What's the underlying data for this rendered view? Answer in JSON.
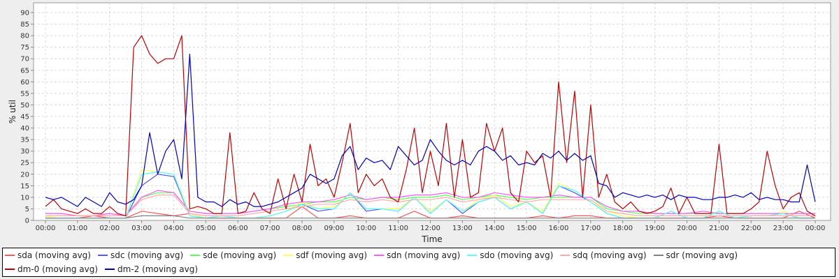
{
  "chart_data": {
    "type": "line",
    "title": "",
    "xlabel": "Time",
    "ylabel": "% util",
    "ylim": [
      0,
      94
    ],
    "xlim_hours": [
      -0.37,
      24.48
    ],
    "yticks": [
      0,
      5,
      10,
      15,
      20,
      25,
      30,
      35,
      40,
      45,
      50,
      55,
      60,
      65,
      70,
      75,
      80,
      85,
      90
    ],
    "xticks": [
      "00:00",
      "01:00",
      "02:00",
      "03:00",
      "04:00",
      "05:00",
      "06:00",
      "07:00",
      "08:00",
      "09:00",
      "10:00",
      "11:00",
      "12:00",
      "13:00",
      "14:00",
      "15:00",
      "16:00",
      "17:00",
      "18:00",
      "19:00",
      "20:00",
      "21:00",
      "22:00",
      "23:00",
      "00:00"
    ],
    "grid": true,
    "legend_position": "bottom",
    "series": [
      {
        "name": "sda (moving avg)",
        "color": "#ff5555",
        "step_hours": 0.5,
        "values": [
          1,
          1,
          1,
          2,
          1,
          1,
          4,
          3,
          2,
          3,
          1,
          1,
          1,
          1,
          1,
          1,
          6,
          1,
          1,
          2,
          1,
          1,
          1,
          4,
          1,
          1,
          2,
          1,
          1,
          1,
          1,
          2,
          1,
          2,
          2,
          1,
          1,
          1,
          1,
          1,
          1,
          1,
          2,
          1,
          1,
          1,
          1,
          4,
          1
        ]
      },
      {
        "name": "sdc (moving avg)",
        "color": "#5555ff",
        "step_hours": 0.5,
        "values": [
          1,
          1,
          1,
          1,
          1,
          1,
          15,
          20,
          19,
          2,
          1,
          2,
          1,
          1,
          2,
          4,
          7,
          4,
          5,
          12,
          4,
          5,
          4,
          10,
          3,
          9,
          3,
          8,
          10,
          5,
          8,
          3,
          15,
          12,
          8,
          3,
          1,
          1,
          1,
          4,
          1,
          1,
          4,
          1,
          2,
          2,
          3,
          1,
          1
        ]
      },
      {
        "name": "sde (moving avg)",
        "color": "#55ff55",
        "step_hours": 0.5,
        "values": [
          3,
          3,
          2,
          2,
          3,
          2,
          10,
          12,
          12,
          4,
          3,
          3,
          3,
          4,
          5,
          6,
          7,
          8,
          8,
          10,
          9,
          10,
          9,
          10,
          10,
          11,
          9,
          10,
          11,
          10,
          9,
          10,
          10,
          10,
          10,
          5,
          4,
          3,
          3,
          3,
          3,
          3,
          3,
          3,
          3,
          3,
          3,
          3,
          3
        ]
      },
      {
        "name": "sdf (moving avg)",
        "color": "#ffff55",
        "step_hours": 0.5,
        "values": [
          1.5,
          1,
          1,
          1,
          1,
          1,
          22,
          21,
          20,
          3,
          1,
          2,
          1,
          1,
          2,
          4,
          8,
          5,
          6,
          12,
          5,
          5,
          5,
          10,
          4,
          9,
          4,
          9,
          11,
          6,
          8,
          4,
          16,
          13,
          8,
          4,
          2,
          1,
          1,
          4,
          1,
          1,
          4,
          1,
          2,
          2,
          4,
          1,
          1
        ]
      },
      {
        "name": "sdn (moving avg)",
        "color": "#ff55ff",
        "step_hours": 0.5,
        "values": [
          3,
          3,
          2,
          2,
          3,
          2,
          10,
          13,
          12,
          4,
          3,
          3,
          3,
          4,
          5,
          7,
          8,
          8,
          9,
          11,
          9,
          10,
          10,
          11,
          11,
          12,
          10,
          10,
          12,
          11,
          10,
          10,
          11,
          10,
          10,
          6,
          4,
          4,
          3,
          3,
          3,
          4,
          3,
          3,
          3,
          3,
          3,
          3,
          3
        ]
      },
      {
        "name": "sdo (moving avg)",
        "color": "#55ffff",
        "step_hours": 0.5,
        "values": [
          1,
          1,
          1,
          1,
          1,
          1,
          20,
          21,
          20,
          2,
          1,
          2,
          1,
          1,
          2,
          4,
          7,
          5,
          5,
          12,
          5,
          5,
          4,
          10,
          3,
          9,
          4,
          8,
          10,
          5,
          8,
          3,
          15,
          13,
          8,
          3,
          1,
          1,
          1,
          4,
          1,
          1,
          4,
          1,
          2,
          2,
          3,
          1,
          1
        ]
      },
      {
        "name": "sdq (moving avg)",
        "color": "#ffaaaa",
        "step_hours": 0.5,
        "values": [
          2,
          2,
          2,
          2,
          2,
          2,
          9,
          11,
          11,
          3,
          2,
          2,
          2,
          3,
          4,
          5,
          6,
          7,
          7,
          9,
          8,
          9,
          8,
          9,
          9,
          10,
          8,
          9,
          10,
          9,
          8,
          9,
          9,
          9,
          9,
          4,
          3,
          2,
          2,
          2,
          2,
          2,
          2,
          2,
          2,
          2,
          2,
          2,
          2
        ]
      },
      {
        "name": "sdr (moving avg)",
        "color": "#808080",
        "step_hours": 0.5,
        "values": [
          1,
          1,
          1,
          1,
          1,
          1,
          2,
          2,
          2,
          1,
          1,
          1,
          1,
          1,
          1,
          1,
          1,
          1,
          1,
          1,
          1,
          1,
          1,
          1,
          1,
          1,
          1,
          1,
          1,
          1,
          1,
          1,
          1,
          1,
          1,
          1,
          1,
          1,
          1,
          1,
          1,
          1,
          1,
          1,
          1,
          1,
          1,
          1,
          1
        ]
      },
      {
        "name": "dm-0 (moving avg)",
        "color": "#c00000",
        "step_hours": 0.25,
        "values": [
          6,
          9,
          5,
          4,
          3,
          5,
          3,
          3,
          6,
          3,
          2,
          75,
          80,
          72,
          68,
          70,
          70,
          80,
          5,
          6,
          5,
          3,
          3,
          38,
          3,
          4,
          12,
          5,
          3,
          18,
          5,
          20,
          8,
          33,
          15,
          18,
          10,
          25,
          42,
          12,
          20,
          15,
          18,
          10,
          8,
          22,
          40,
          12,
          30,
          15,
          42,
          10,
          35,
          10,
          12,
          42,
          30,
          40,
          12,
          8,
          30,
          25,
          28,
          10,
          60,
          25,
          56,
          10,
          50,
          10,
          20,
          8,
          5,
          8,
          4,
          3,
          4,
          6,
          14,
          3,
          10,
          3,
          3,
          3,
          33,
          3,
          3,
          3,
          5,
          8,
          30,
          15,
          5,
          10,
          12,
          4,
          2
        ]
      },
      {
        "name": "dm-2 (moving avg)",
        "color": "#0000c0",
        "step_hours": 0.25,
        "values": [
          10,
          9,
          10,
          8,
          6,
          10,
          8,
          6,
          12,
          8,
          7,
          9,
          15,
          38,
          20,
          30,
          35,
          18,
          72,
          10,
          8,
          8,
          6,
          9,
          7,
          8,
          6,
          6,
          7,
          8,
          10,
          12,
          14,
          20,
          18,
          16,
          18,
          28,
          32,
          22,
          27,
          25,
          26,
          22,
          32,
          28,
          24,
          26,
          35,
          30,
          26,
          24,
          26,
          24,
          30,
          32,
          30,
          26,
          28,
          24,
          25,
          24,
          29,
          27,
          30,
          26,
          29,
          26,
          28,
          16,
          15,
          10,
          12,
          11,
          10,
          11,
          10,
          11,
          9,
          11,
          10,
          10,
          9,
          9,
          10,
          10,
          11,
          10,
          12,
          9,
          10,
          9,
          9,
          8,
          8,
          24,
          8
        ]
      }
    ]
  }
}
